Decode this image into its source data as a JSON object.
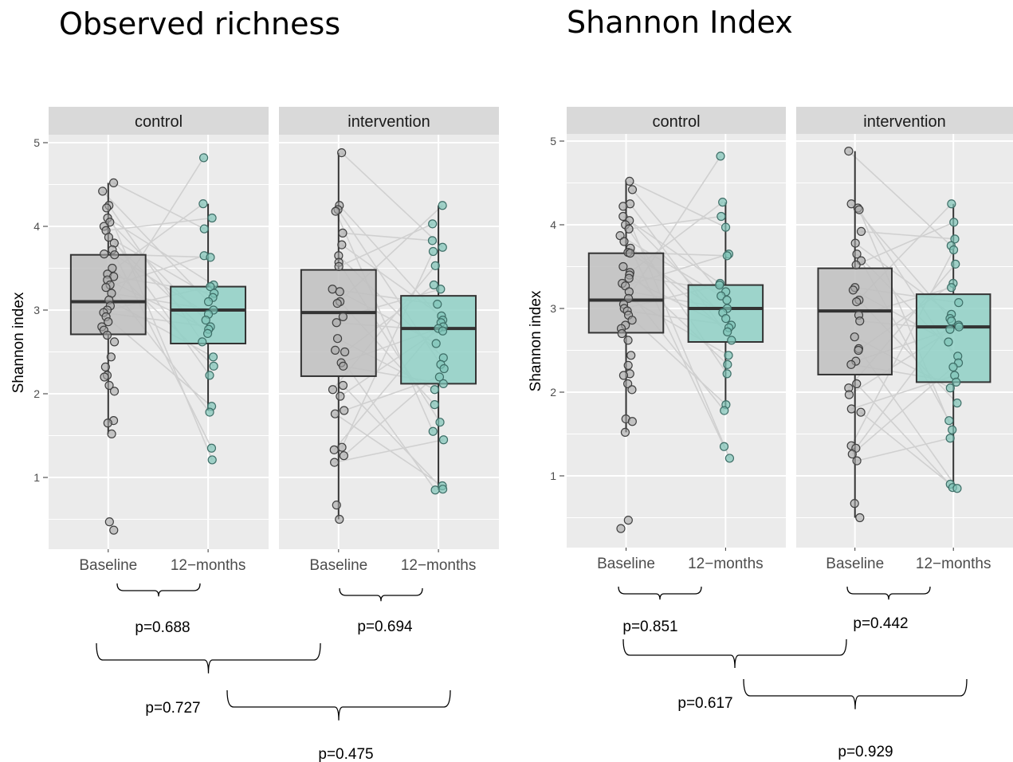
{
  "titles": {
    "left": "Observed richness",
    "right": "Shannon Index"
  },
  "colors": {
    "panel_bg": "#ebebeb",
    "strip_bg": "#d9d9d9",
    "grid": "#ffffff",
    "baseline_fill": "#bfbfbf",
    "followup_fill": "#8fd0c6",
    "baseline_point": "#a6a6a6",
    "followup_point": "#7fc4b8",
    "pair_line": "#d0d0d0",
    "box_stroke": "#333333"
  },
  "chart_data": [
    {
      "type": "box",
      "title": "Observed richness",
      "ylabel": "Shannon index",
      "ylim": [
        0.2,
        5.25
      ],
      "yticks": [
        1,
        2,
        3,
        4,
        5
      ],
      "grid": true,
      "categories": [
        "Baseline",
        "12−months"
      ],
      "facets": [
        {
          "label": "control",
          "boxes": [
            {
              "category": "Baseline",
              "q1": 2.71,
              "median": 3.1,
              "q3": 3.66,
              "whisker_low": 1.52,
              "whisker_high": 4.52
            },
            {
              "category": "12−months",
              "q1": 2.6,
              "median": 3.0,
              "q3": 3.28,
              "whisker_low": 1.8,
              "whisker_high": 4.27
            }
          ],
          "points": {
            "Baseline": [
              4.52,
              4.42,
              4.25,
              4.22,
              4.1,
              4.05,
              4.0,
              3.95,
              3.87,
              3.8,
              3.72,
              3.67,
              3.66,
              3.5,
              3.43,
              3.4,
              3.36,
              3.3,
              3.27,
              3.2,
              3.12,
              3.05,
              3.0,
              2.97,
              2.92,
              2.86,
              2.8,
              2.76,
              2.7,
              2.62,
              2.44,
              2.32,
              2.22,
              2.2,
              2.1,
              2.03,
              1.68,
              1.65,
              1.52,
              0.47,
              0.37
            ],
            "12−months": [
              4.82,
              4.27,
              4.1,
              3.97,
              3.65,
              3.63,
              3.3,
              3.28,
              3.2,
              3.15,
              3.1,
              3.0,
              2.95,
              2.88,
              2.8,
              2.77,
              2.72,
              2.62,
              2.44,
              2.33,
              2.22,
              1.85,
              1.78,
              1.35,
              1.21
            ]
          }
        },
        {
          "label": "intervention",
          "boxes": [
            {
              "category": "Baseline",
              "q1": 2.21,
              "median": 2.97,
              "q3": 3.48,
              "whisker_low": 0.5,
              "whisker_high": 4.88
            },
            {
              "category": "12−months",
              "q1": 2.12,
              "median": 2.78,
              "q3": 3.17,
              "whisker_low": 0.85,
              "whisker_high": 4.25
            }
          ],
          "points": {
            "Baseline": [
              4.88,
              4.25,
              4.2,
              4.18,
              3.92,
              3.78,
              3.65,
              3.57,
              3.52,
              3.25,
              3.22,
              3.1,
              3.08,
              2.92,
              2.85,
              2.66,
              2.52,
              2.5,
              2.37,
              2.33,
              2.1,
              2.05,
              1.97,
              1.8,
              1.76,
              1.36,
              1.33,
              1.26,
              1.18,
              0.67,
              0.5
            ],
            "12−months": [
              4.25,
              4.03,
              3.83,
              3.75,
              3.7,
              3.53,
              3.3,
              3.25,
              3.07,
              2.93,
              2.88,
              2.85,
              2.8,
              2.78,
              2.75,
              2.6,
              2.43,
              2.35,
              2.3,
              2.2,
              2.12,
              2.05,
              1.87,
              1.66,
              1.55,
              1.45,
              0.9,
              0.86,
              0.85
            ]
          }
        }
      ],
      "comparisons": [
        {
          "label": "p=0.688"
        },
        {
          "label": "p=0.694"
        },
        {
          "label": "p=0.727"
        },
        {
          "label": "p=0.475"
        }
      ]
    },
    {
      "type": "box",
      "title": "Shannon Index",
      "ylabel": "Shannon index",
      "ylim": [
        0.2,
        5.25
      ],
      "yticks": [
        1,
        2,
        3,
        4,
        5
      ],
      "grid": true,
      "categories": [
        "Baseline",
        "12−months"
      ],
      "facets": [
        {
          "label": "control",
          "boxes": [
            {
              "category": "Baseline",
              "q1": 2.71,
              "median": 3.1,
              "q3": 3.66,
              "whisker_low": 1.52,
              "whisker_high": 4.52
            },
            {
              "category": "12−months",
              "q1": 2.6,
              "median": 3.0,
              "q3": 3.28,
              "whisker_low": 1.8,
              "whisker_high": 4.27
            }
          ],
          "points": {
            "Baseline": [
              4.52,
              4.42,
              4.25,
              4.22,
              4.1,
              4.05,
              4.0,
              3.95,
              3.87,
              3.8,
              3.72,
              3.67,
              3.66,
              3.5,
              3.43,
              3.4,
              3.36,
              3.3,
              3.27,
              3.2,
              3.12,
              3.05,
              3.0,
              2.97,
              2.92,
              2.86,
              2.8,
              2.76,
              2.7,
              2.62,
              2.44,
              2.32,
              2.22,
              2.2,
              2.1,
              2.03,
              1.68,
              1.65,
              1.52,
              0.47,
              0.37
            ],
            "12−months": [
              4.82,
              4.27,
              4.1,
              3.97,
              3.65,
              3.63,
              3.3,
              3.28,
              3.2,
              3.15,
              3.1,
              3.0,
              2.95,
              2.88,
              2.8,
              2.77,
              2.72,
              2.62,
              2.44,
              2.33,
              2.22,
              1.85,
              1.78,
              1.35,
              1.21
            ]
          }
        },
        {
          "label": "intervention",
          "boxes": [
            {
              "category": "Baseline",
              "q1": 2.21,
              "median": 2.97,
              "q3": 3.48,
              "whisker_low": 0.5,
              "whisker_high": 4.88
            },
            {
              "category": "12−months",
              "q1": 2.12,
              "median": 2.78,
              "q3": 3.17,
              "whisker_low": 0.85,
              "whisker_high": 4.25
            }
          ],
          "points": {
            "Baseline": [
              4.88,
              4.25,
              4.2,
              4.18,
              3.92,
              3.78,
              3.65,
              3.57,
              3.52,
              3.25,
              3.22,
              3.1,
              3.08,
              2.92,
              2.85,
              2.66,
              2.52,
              2.5,
              2.37,
              2.33,
              2.1,
              2.05,
              1.97,
              1.8,
              1.76,
              1.36,
              1.33,
              1.26,
              1.18,
              0.67,
              0.5
            ],
            "12−months": [
              4.25,
              4.03,
              3.83,
              3.75,
              3.7,
              3.53,
              3.3,
              3.25,
              3.07,
              2.93,
              2.88,
              2.85,
              2.8,
              2.78,
              2.75,
              2.6,
              2.43,
              2.35,
              2.3,
              2.2,
              2.12,
              2.05,
              1.87,
              1.66,
              1.55,
              1.45,
              0.9,
              0.86,
              0.85
            ]
          }
        }
      ],
      "comparisons": [
        {
          "label": "p=0.851"
        },
        {
          "label": "p=0.442"
        },
        {
          "label": "p=0.617"
        },
        {
          "label": "p=0.929"
        }
      ]
    }
  ]
}
